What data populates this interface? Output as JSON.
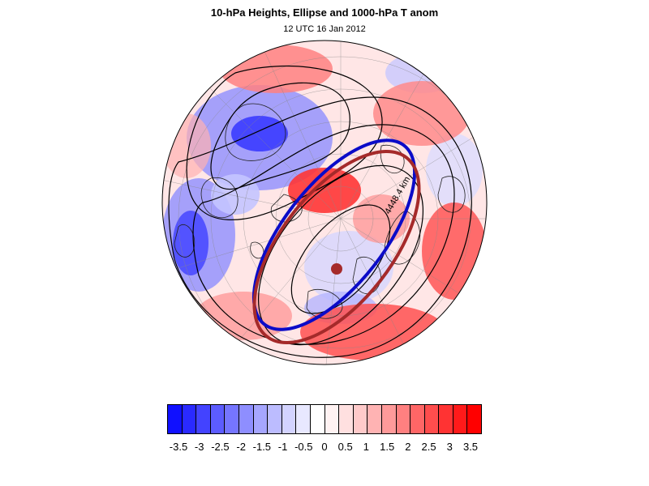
{
  "title": "10-hPa Heights, Ellipse and 1000-hPa T anom",
  "subtitle": "12 UTC 16 Jan 2012",
  "contour_label": "4448.4 km",
  "colorbar": {
    "colors": [
      "#1010ff",
      "#2a2aff",
      "#4343ff",
      "#5c5cff",
      "#7575ff",
      "#8e8eff",
      "#a6a6ff",
      "#bcbcff",
      "#d3d3ff",
      "#e8e8ff",
      "#ffffff",
      "#fff2f2",
      "#ffe0e0",
      "#ffcaca",
      "#ffb3b3",
      "#ff9a9a",
      "#ff8080",
      "#ff6666",
      "#ff4d4d",
      "#ff3333",
      "#ff1a1a",
      "#ff0000"
    ],
    "labels": [
      "-3.5",
      "-3",
      "-2.5",
      "-2",
      "-1.5",
      "-1",
      "-0.5",
      "0",
      "0.5",
      "1",
      "1.5",
      "2",
      "2.5",
      "3",
      "3.5"
    ]
  },
  "legend_colors": {
    "blue_ellipse": "#0b0bc8",
    "red_ellipse": "#a52a2a",
    "center_dot": "#a52a2a"
  }
}
